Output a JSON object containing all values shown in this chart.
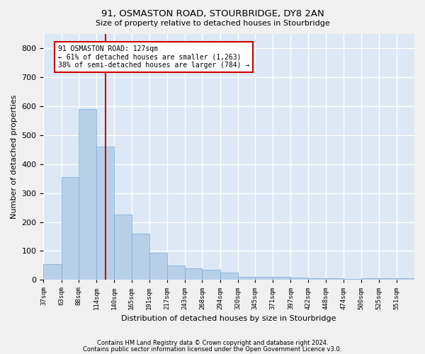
{
  "title": "91, OSMASTON ROAD, STOURBRIDGE, DY8 2AN",
  "subtitle": "Size of property relative to detached houses in Stourbridge",
  "xlabel": "Distribution of detached houses by size in Stourbridge",
  "ylabel": "Number of detached properties",
  "footnote1": "Contains HM Land Registry data © Crown copyright and database right 2024.",
  "footnote2": "Contains public sector information licensed under the Open Government Licence v3.0.",
  "bar_color": "#b8cfe8",
  "bar_edge_color": "#7aacd4",
  "background_color": "#dce8f5",
  "grid_color": "#ffffff",
  "fig_bg_color": "#f0f0f0",
  "vline_color": "#cc0000",
  "vline_x": 127,
  "annotation_text": "91 OSMASTON ROAD: 127sqm\n← 61% of detached houses are smaller (1,263)\n38% of semi-detached houses are larger (784) →",
  "annotation_box_color": "#ffffff",
  "annotation_box_edge": "#cc0000",
  "categories": [
    "37sqm",
    "63sqm",
    "88sqm",
    "114sqm",
    "140sqm",
    "165sqm",
    "191sqm",
    "217sqm",
    "243sqm",
    "268sqm",
    "294sqm",
    "320sqm",
    "345sqm",
    "371sqm",
    "397sqm",
    "422sqm",
    "448sqm",
    "474sqm",
    "500sqm",
    "525sqm",
    "551sqm"
  ],
  "bin_edges": [
    37,
    63,
    88,
    114,
    140,
    165,
    191,
    217,
    243,
    268,
    294,
    320,
    345,
    371,
    397,
    422,
    448,
    474,
    500,
    525,
    551,
    577
  ],
  "values": [
    55,
    355,
    590,
    460,
    225,
    160,
    95,
    50,
    40,
    35,
    25,
    10,
    10,
    10,
    8,
    6,
    6,
    3,
    5,
    5,
    5
  ],
  "ylim": [
    0,
    850
  ],
  "yticks": [
    0,
    100,
    200,
    300,
    400,
    500,
    600,
    700,
    800
  ]
}
